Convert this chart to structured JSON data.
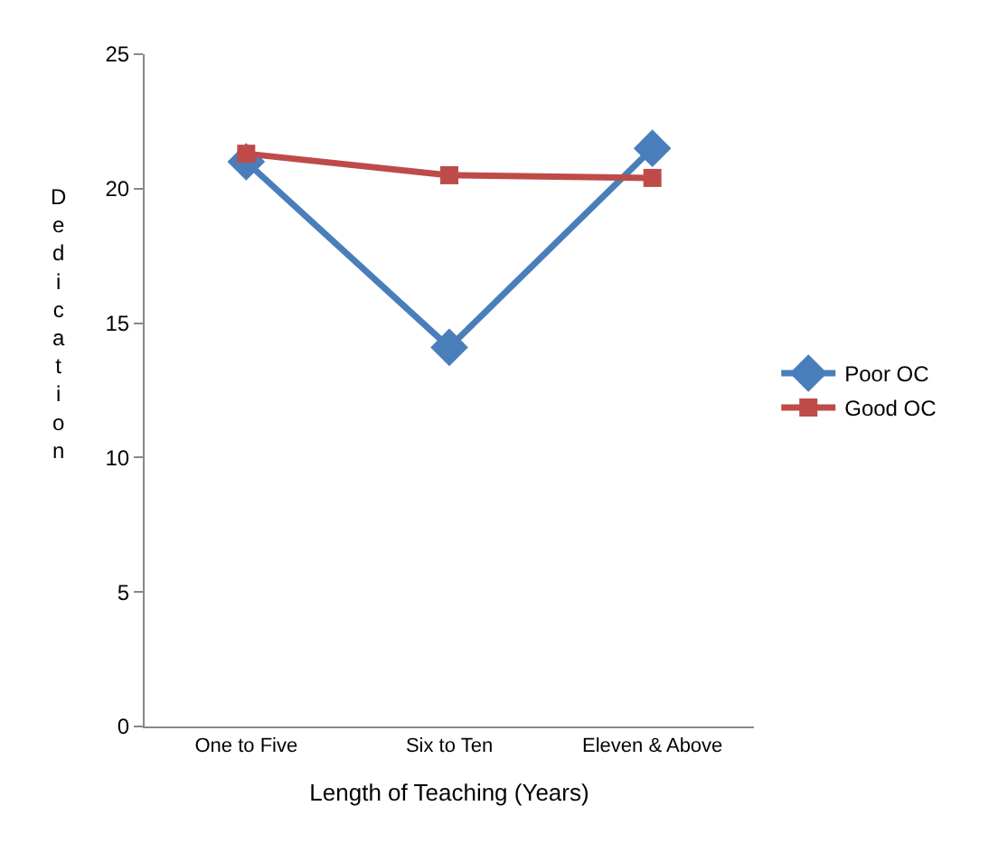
{
  "chart_data": {
    "type": "line",
    "xlabel": "Length of Teaching (Years)",
    "ylabel": "Dedication",
    "categories": [
      "One to Five",
      "Six to Ten",
      "Eleven & Above"
    ],
    "series": [
      {
        "name": "Poor OC",
        "color": "#4a7ebb",
        "values": [
          21.0,
          14.1,
          21.5
        ],
        "marker": "diamond"
      },
      {
        "name": "Good OC",
        "color": "#be4b48",
        "values": [
          21.3,
          20.5,
          20.4
        ],
        "marker": "square"
      }
    ],
    "ylim": [
      0,
      25
    ],
    "yticks": [
      0,
      5,
      10,
      15,
      20,
      25
    ],
    "legend": "right"
  }
}
